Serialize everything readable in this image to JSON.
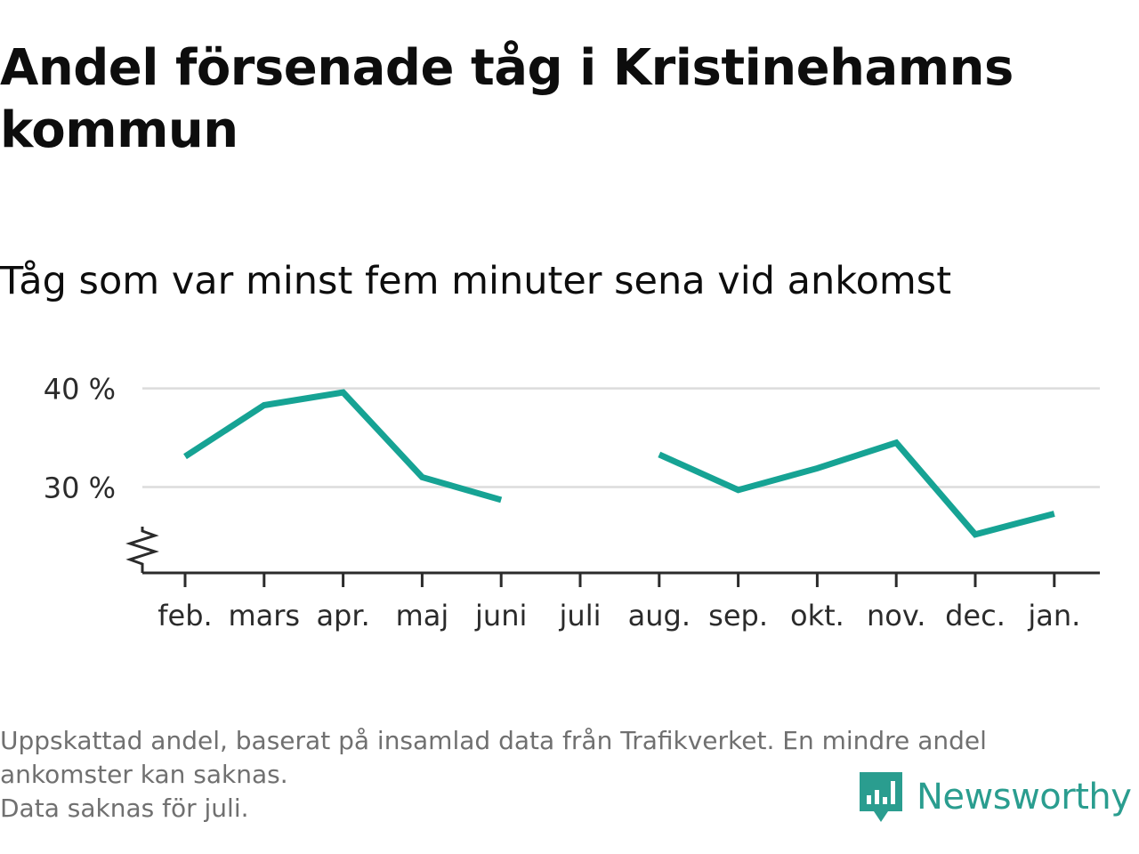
{
  "header": {
    "title": "Andel försenade tåg i Kristinehamns kommun",
    "subtitle": "Tåg som var minst fem minuter sena vid ankomst"
  },
  "chart_data": {
    "type": "line",
    "categories": [
      "feb.",
      "mars",
      "apr.",
      "maj",
      "juni",
      "juli",
      "aug.",
      "sep.",
      "okt.",
      "nov.",
      "dec.",
      "jan."
    ],
    "series": [
      {
        "values": [
          33.1,
          38.3,
          39.6,
          31.0,
          28.7,
          null,
          33.3,
          29.7,
          31.9,
          34.5,
          25.2,
          27.3
        ]
      }
    ],
    "y_ticks": [
      30,
      40
    ],
    "y_tick_labels": [
      "30 %",
      "40 %"
    ],
    "ylim": [
      21.3,
      41.5
    ],
    "y_axis_break": true,
    "grid": "horizontal",
    "line_color": "#16a394",
    "xlabel": "",
    "ylabel": ""
  },
  "footer": {
    "note_line1": "Uppskattad andel, baserat på insamlad data från Trafikverket. En mindre andel",
    "note_line2": "ankomster kan saknas.",
    "note_line3": "Data saknas för juli."
  },
  "brand": {
    "name": "Newsworthy",
    "icon": "newsworthy-logo-icon",
    "color": "#2a9d8f"
  }
}
